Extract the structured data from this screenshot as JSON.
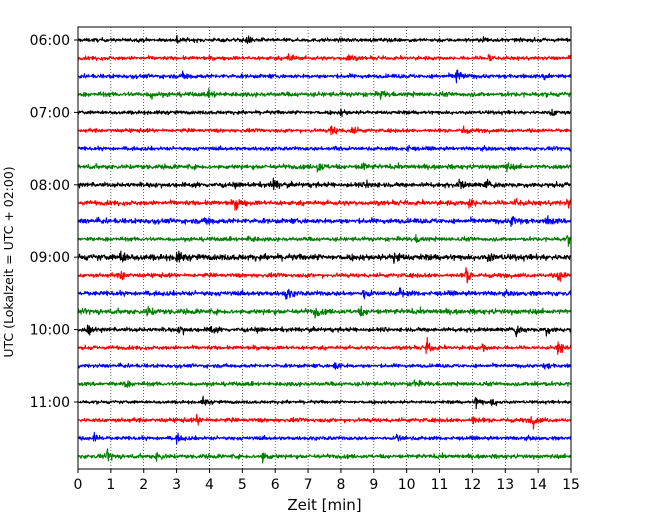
{
  "chart_data": {
    "type": "line",
    "title": "",
    "xlabel": "Zeit  [min]",
    "ylabel": "UTC (Lokalzeit = UTC + 02:00)",
    "xlim": [
      0,
      15
    ],
    "x_ticks": [
      "0",
      "1",
      "2",
      "3",
      "4",
      "5",
      "6",
      "7",
      "8",
      "9",
      "10",
      "11",
      "12",
      "13",
      "14",
      "15"
    ],
    "y_ticks": [
      "06:00",
      "07:00",
      "08:00",
      "09:00",
      "10:00",
      "11:00"
    ],
    "grid": "vertical dotted lines at each minute",
    "trace_interval_min": 15,
    "trace_colors": [
      "#000000",
      "#ff0000",
      "#0000ff",
      "#008000"
    ],
    "traces": [
      {
        "start": "06:00",
        "color": "#000000",
        "amplitude": 0.16,
        "events": [
          {
            "t": 3.0,
            "amp": 0.4
          },
          {
            "t": 5.1,
            "amp": 0.45
          },
          {
            "t": 12.3,
            "amp": 0.3
          }
        ]
      },
      {
        "start": "06:15",
        "color": "#ff0000",
        "amplitude": 0.16,
        "events": [
          {
            "t": 6.4,
            "amp": 0.5
          },
          {
            "t": 8.2,
            "amp": 0.4
          },
          {
            "t": 12.5,
            "amp": 0.45
          }
        ]
      },
      {
        "start": "06:30",
        "color": "#0000ff",
        "amplitude": 0.18,
        "events": [
          {
            "t": 3.2,
            "amp": 0.35
          },
          {
            "t": 11.5,
            "amp": 0.9
          },
          {
            "t": 14.2,
            "amp": 0.4
          }
        ]
      },
      {
        "start": "06:45",
        "color": "#008000",
        "amplitude": 0.2,
        "events": [
          {
            "t": 2.2,
            "amp": 0.35
          },
          {
            "t": 4.0,
            "amp": 0.35
          },
          {
            "t": 9.2,
            "amp": 0.3
          }
        ]
      },
      {
        "start": "07:00",
        "color": "#000000",
        "amplitude": 0.16,
        "events": [
          {
            "t": 8.0,
            "amp": 0.3
          },
          {
            "t": 14.4,
            "amp": 0.4
          }
        ]
      },
      {
        "start": "07:15",
        "color": "#ff0000",
        "amplitude": 0.16,
        "events": [
          {
            "t": 7.7,
            "amp": 0.55
          },
          {
            "t": 8.3,
            "amp": 0.6
          },
          {
            "t": 11.7,
            "amp": 0.35
          }
        ]
      },
      {
        "start": "07:30",
        "color": "#0000ff",
        "amplitude": 0.16,
        "events": [
          {
            "t": 7.8,
            "amp": 0.5
          },
          {
            "t": 10.0,
            "amp": 0.3
          }
        ]
      },
      {
        "start": "07:45",
        "color": "#008000",
        "amplitude": 0.2,
        "events": [
          {
            "t": 7.3,
            "amp": 0.55
          },
          {
            "t": 8.6,
            "amp": 0.55
          },
          {
            "t": 13.0,
            "amp": 0.4
          }
        ]
      },
      {
        "start": "08:00",
        "color": "#000000",
        "amplitude": 0.2,
        "events": [
          {
            "t": 5.9,
            "amp": 0.7
          },
          {
            "t": 8.8,
            "amp": 0.4
          },
          {
            "t": 11.6,
            "amp": 0.5
          },
          {
            "t": 12.4,
            "amp": 0.45
          }
        ]
      },
      {
        "start": "08:15",
        "color": "#ff0000",
        "amplitude": 0.2,
        "events": [
          {
            "t": 4.8,
            "amp": 0.6
          },
          {
            "t": 11.9,
            "amp": 0.55
          },
          {
            "t": 13.3,
            "amp": 0.65
          },
          {
            "t": 14.9,
            "amp": 0.45
          }
        ]
      },
      {
        "start": "08:30",
        "color": "#0000ff",
        "amplitude": 0.22,
        "events": [
          {
            "t": 3.9,
            "amp": 0.4
          },
          {
            "t": 13.2,
            "amp": 0.6
          },
          {
            "t": 14.3,
            "amp": 0.45
          }
        ]
      },
      {
        "start": "08:45",
        "color": "#008000",
        "amplitude": 0.18,
        "events": [
          {
            "t": 5.2,
            "amp": 0.35
          },
          {
            "t": 10.3,
            "amp": 0.3
          },
          {
            "t": 14.9,
            "amp": 0.4
          }
        ]
      },
      {
        "start": "09:00",
        "color": "#000000",
        "amplitude": 0.26,
        "events": [
          {
            "t": 1.3,
            "amp": 0.55
          },
          {
            "t": 3.0,
            "amp": 0.5
          },
          {
            "t": 9.6,
            "amp": 0.7
          },
          {
            "t": 12.5,
            "amp": 0.35
          }
        ]
      },
      {
        "start": "09:15",
        "color": "#ff0000",
        "amplitude": 0.18,
        "events": [
          {
            "t": 1.3,
            "amp": 0.45
          },
          {
            "t": 11.8,
            "amp": 0.7
          },
          {
            "t": 14.6,
            "amp": 0.6
          }
        ]
      },
      {
        "start": "09:30",
        "color": "#0000ff",
        "amplitude": 0.2,
        "events": [
          {
            "t": 6.3,
            "amp": 0.6
          },
          {
            "t": 8.7,
            "amp": 0.55
          },
          {
            "t": 9.8,
            "amp": 0.45
          }
        ]
      },
      {
        "start": "09:45",
        "color": "#008000",
        "amplitude": 0.22,
        "events": [
          {
            "t": 2.1,
            "amp": 0.45
          },
          {
            "t": 7.2,
            "amp": 0.45
          },
          {
            "t": 8.6,
            "amp": 0.35
          }
        ]
      },
      {
        "start": "10:00",
        "color": "#000000",
        "amplitude": 0.18,
        "events": [
          {
            "t": 0.3,
            "amp": 0.55
          },
          {
            "t": 3.1,
            "amp": 0.4
          },
          {
            "t": 4.0,
            "amp": 0.4
          },
          {
            "t": 13.3,
            "amp": 0.55
          },
          {
            "t": 14.2,
            "amp": 0.5
          }
        ]
      },
      {
        "start": "10:15",
        "color": "#ff0000",
        "amplitude": 0.16,
        "events": [
          {
            "t": 10.6,
            "amp": 0.75
          },
          {
            "t": 12.3,
            "amp": 0.4
          },
          {
            "t": 14.6,
            "amp": 0.7
          }
        ]
      },
      {
        "start": "10:30",
        "color": "#0000ff",
        "amplitude": 0.16,
        "events": [
          {
            "t": 7.8,
            "amp": 0.45
          },
          {
            "t": 14.2,
            "amp": 0.35
          }
        ]
      },
      {
        "start": "10:45",
        "color": "#008000",
        "amplitude": 0.18,
        "events": [
          {
            "t": 1.4,
            "amp": 0.35
          },
          {
            "t": 10.2,
            "amp": 0.4
          },
          {
            "t": 13.9,
            "amp": 0.35
          }
        ]
      },
      {
        "start": "11:00",
        "color": "#000000",
        "amplitude": 0.14,
        "events": [
          {
            "t": 3.8,
            "amp": 0.4
          },
          {
            "t": 12.1,
            "amp": 0.6
          },
          {
            "t": 12.6,
            "amp": 0.45
          }
        ]
      },
      {
        "start": "11:15",
        "color": "#ff0000",
        "amplitude": 0.18,
        "events": [
          {
            "t": 3.6,
            "amp": 0.45
          },
          {
            "t": 12.0,
            "amp": 0.4
          },
          {
            "t": 13.8,
            "amp": 0.6
          }
        ]
      },
      {
        "start": "11:30",
        "color": "#0000ff",
        "amplitude": 0.16,
        "events": [
          {
            "t": 0.5,
            "amp": 0.45
          },
          {
            "t": 3.0,
            "amp": 0.35
          },
          {
            "t": 9.7,
            "amp": 0.35
          }
        ]
      },
      {
        "start": "11:45",
        "color": "#008000",
        "amplitude": 0.18,
        "events": [
          {
            "t": 0.9,
            "amp": 0.4
          },
          {
            "t": 2.4,
            "amp": 0.45
          },
          {
            "t": 5.6,
            "amp": 0.6
          }
        ]
      }
    ]
  }
}
